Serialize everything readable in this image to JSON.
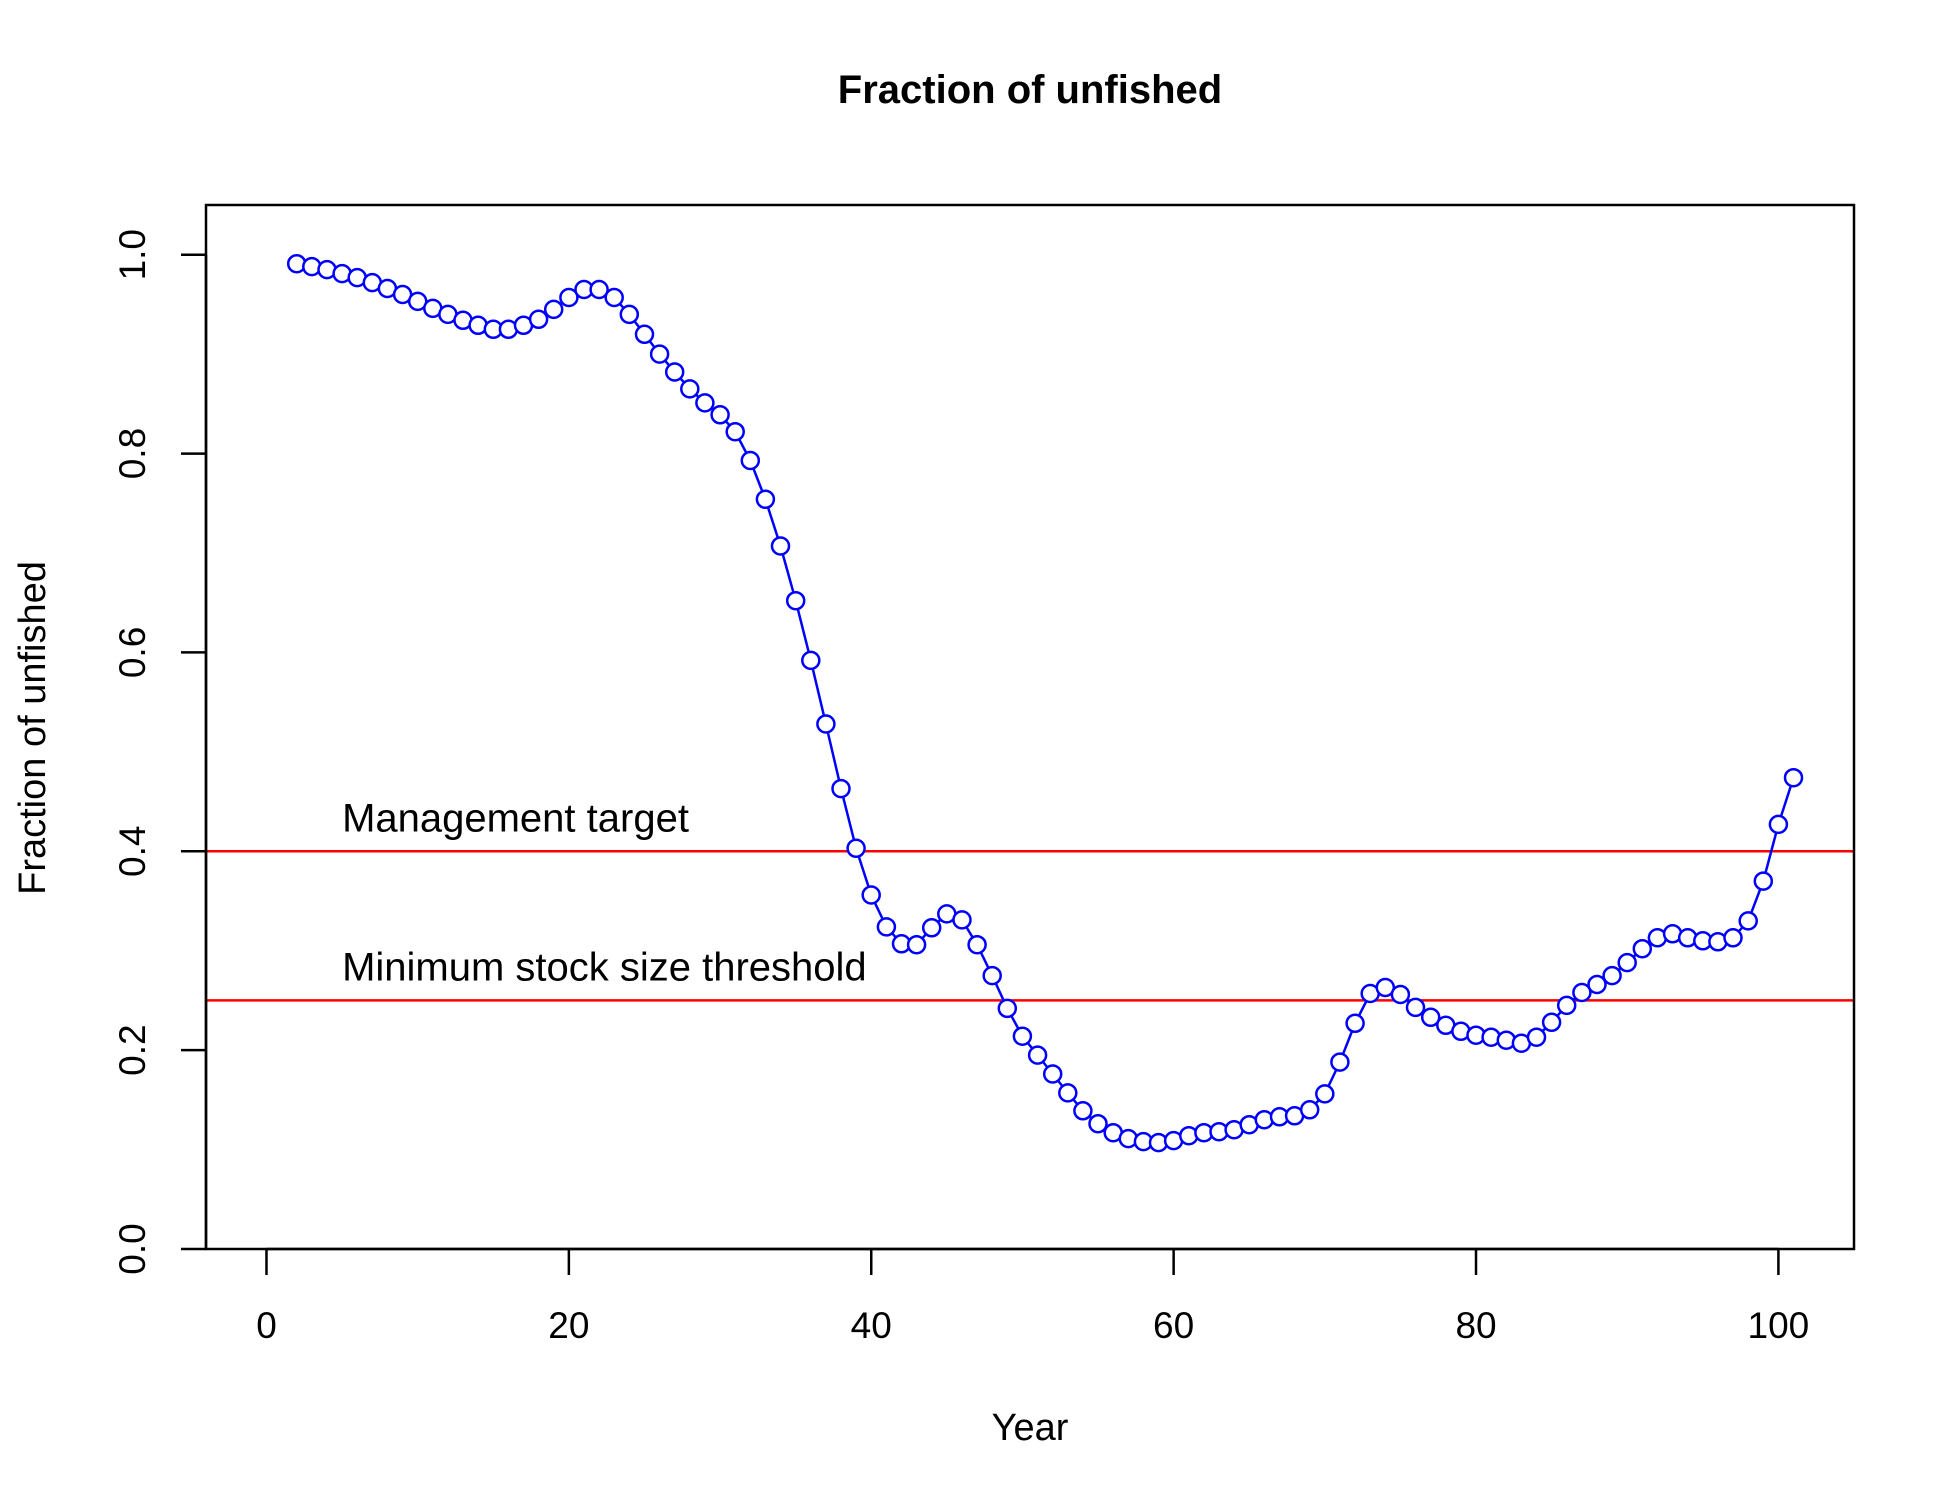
{
  "chart_data": {
    "type": "line",
    "title": "Fraction of unfished",
    "xlabel": "Year",
    "ylabel": "Fraction of unfished",
    "xlim": [
      -4,
      105
    ],
    "ylim": [
      0,
      1.05
    ],
    "x_ticks": [
      0,
      20,
      40,
      60,
      80,
      100
    ],
    "x_tick_labels": [
      "0",
      "20",
      "40",
      "60",
      "80",
      "100"
    ],
    "y_ticks": [
      0.0,
      0.2,
      0.4,
      0.6,
      0.8,
      1.0
    ],
    "y_tick_labels": [
      "0.0",
      "0.2",
      "0.4",
      "0.6",
      "0.8",
      "1.0"
    ],
    "grid": false,
    "series": [
      {
        "color": "#0000ff",
        "marker": "open-circle",
        "x": [
          2,
          3,
          4,
          5,
          6,
          7,
          8,
          9,
          10,
          11,
          12,
          13,
          14,
          15,
          16,
          17,
          18,
          19,
          20,
          21,
          22,
          23,
          24,
          25,
          26,
          27,
          28,
          29,
          30,
          31,
          32,
          33,
          34,
          35,
          36,
          37,
          38,
          39,
          40,
          41,
          42,
          43,
          44,
          45,
          46,
          47,
          48,
          49,
          50,
          51,
          52,
          53,
          54,
          55,
          56,
          57,
          58,
          59,
          60,
          61,
          62,
          63,
          64,
          65,
          66,
          67,
          68,
          69,
          70,
          71,
          72,
          73,
          74,
          75,
          76,
          77,
          78,
          79,
          80,
          81,
          82,
          83,
          84,
          85,
          86,
          87,
          88,
          89,
          90,
          91,
          92,
          93,
          94,
          95,
          96,
          97,
          98,
          99,
          100,
          101
        ],
        "values": [
          0.991,
          0.988,
          0.985,
          0.981,
          0.977,
          0.972,
          0.966,
          0.96,
          0.953,
          0.946,
          0.94,
          0.934,
          0.929,
          0.925,
          0.925,
          0.929,
          0.935,
          0.945,
          0.957,
          0.965,
          0.965,
          0.957,
          0.94,
          0.92,
          0.9,
          0.882,
          0.865,
          0.851,
          0.839,
          0.822,
          0.793,
          0.754,
          0.707,
          0.652,
          0.592,
          0.528,
          0.463,
          0.403,
          0.356,
          0.324,
          0.307,
          0.306,
          0.323,
          0.337,
          0.331,
          0.306,
          0.275,
          0.242,
          0.214,
          0.195,
          0.176,
          0.157,
          0.139,
          0.126,
          0.117,
          0.111,
          0.108,
          0.107,
          0.109,
          0.114,
          0.117,
          0.118,
          0.12,
          0.125,
          0.13,
          0.133,
          0.134,
          0.14,
          0.156,
          0.188,
          0.227,
          0.257,
          0.263,
          0.256,
          0.243,
          0.233,
          0.225,
          0.219,
          0.215,
          0.213,
          0.21,
          0.207,
          0.213,
          0.228,
          0.245,
          0.258,
          0.266,
          0.275,
          0.288,
          0.302,
          0.313,
          0.317,
          0.313,
          0.31,
          0.309,
          0.313,
          0.33,
          0.37,
          0.427,
          0.474
        ]
      }
    ],
    "reference_lines": [
      {
        "y": 0.4,
        "label": "Management target",
        "color": "#ff0000"
      },
      {
        "y": 0.25,
        "label": "Minimum stock size threshold",
        "color": "#ff0000"
      }
    ]
  }
}
